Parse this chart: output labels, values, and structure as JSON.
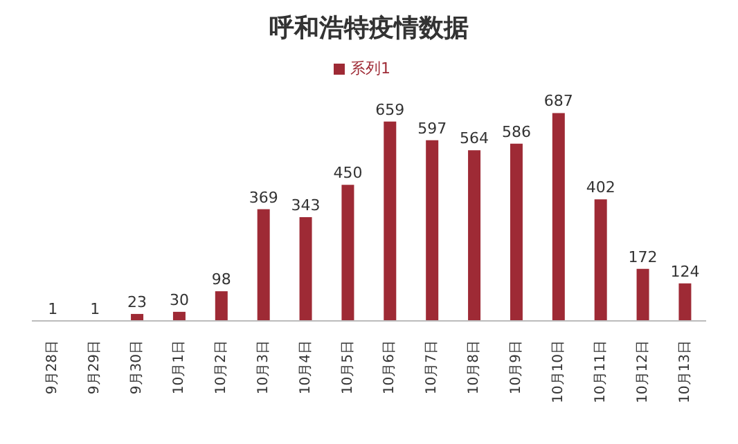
{
  "chart_data": {
    "type": "bar",
    "title": "呼和浩特疫情数据",
    "categories": [
      "9月28日",
      "9月29日",
      "9月30日",
      "10月1日",
      "10月2日",
      "10月3日",
      "10月4日",
      "10月5日",
      "10月6日",
      "10月7日",
      "10月8日",
      "10月9日",
      "10月10日",
      "10月11日",
      "10月12日",
      "10月13日"
    ],
    "series": [
      {
        "name": "系列1",
        "color": "#9e2a35",
        "values": [
          1,
          1,
          23,
          30,
          98,
          369,
          343,
          450,
          659,
          597,
          564,
          586,
          687,
          402,
          172,
          124
        ]
      }
    ],
    "data_labels": true,
    "legend": "top",
    "grid": false
  }
}
